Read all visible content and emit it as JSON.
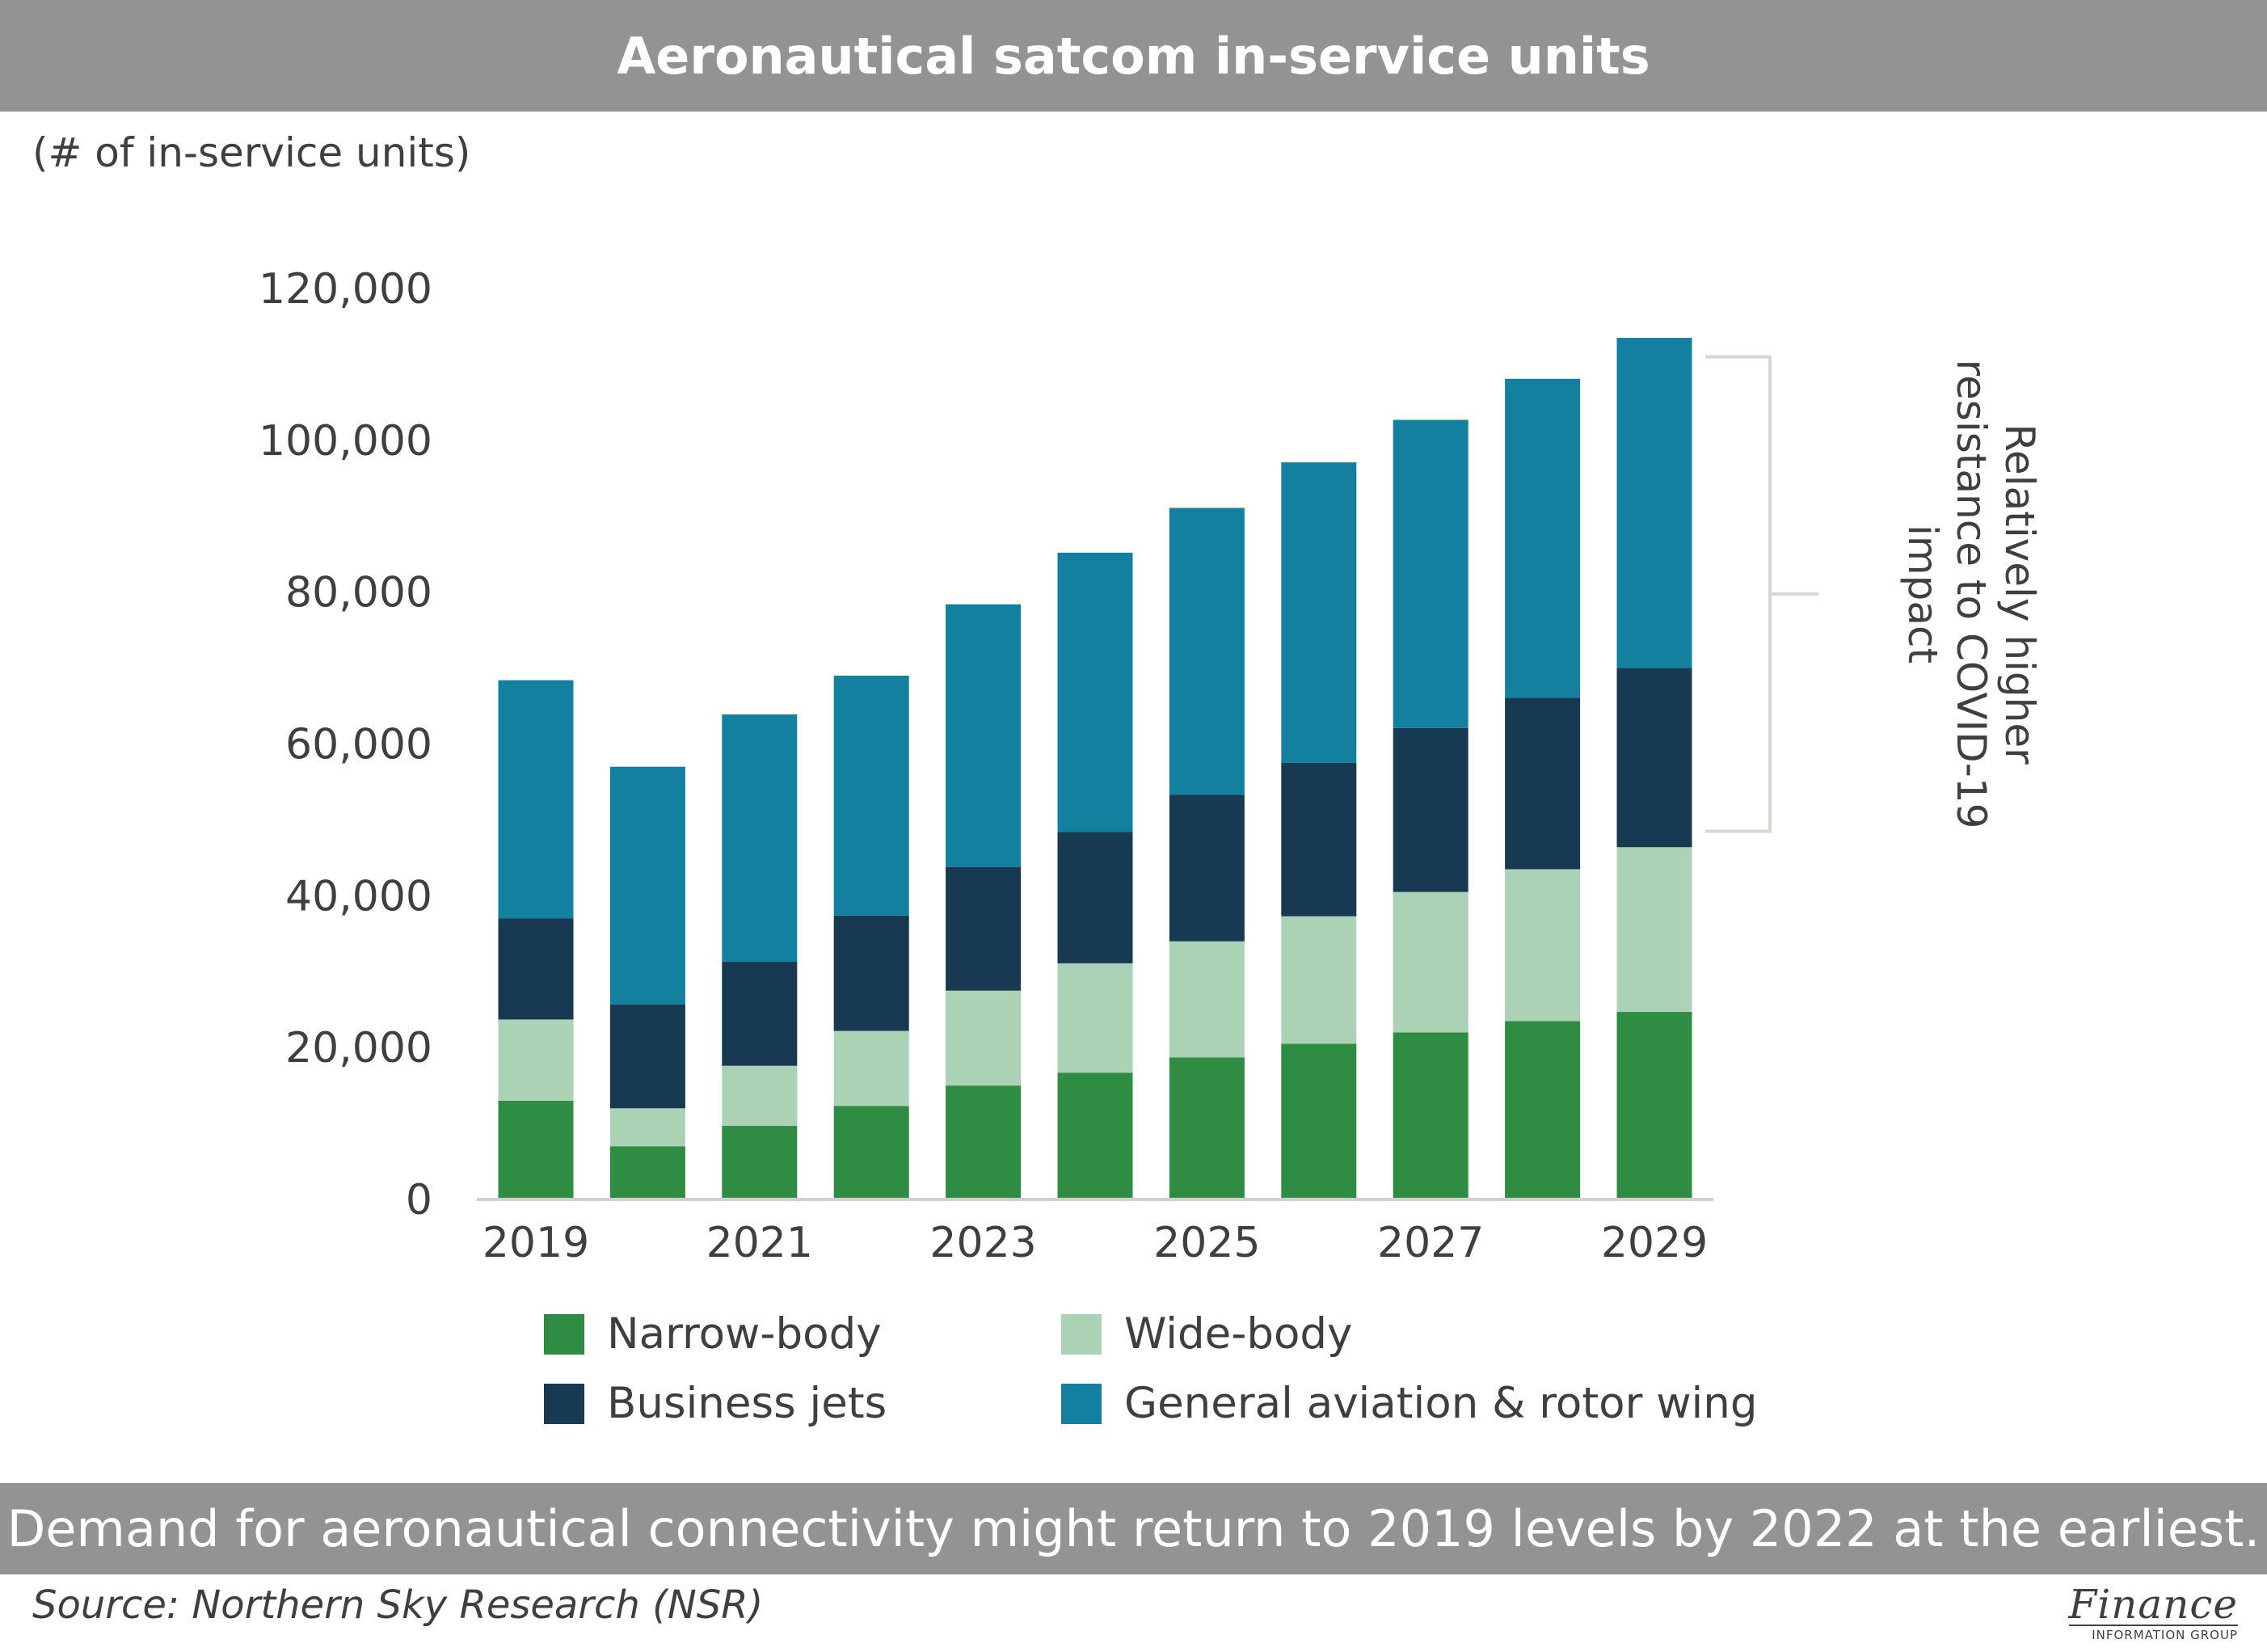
{
  "title": "Aeronautical satcom in-service units",
  "unit_label": "(# of in-service units)",
  "caption": "Demand for aeronautical connectivity might return to 2019 levels by 2022 at the earliest.",
  "source": "Source: Northern Sky Research (NSR)",
  "logo": {
    "main": "Finance",
    "sub": "INFORMATION GROUP"
  },
  "colors": {
    "narrow_body": "#2f8c43",
    "wide_body": "#acd2b5",
    "business_jets": "#173a52",
    "general_aviation": "#14809f",
    "header_bar": "#939396",
    "axis_text": "#3f3f3f",
    "bracket": "#d6d6d3"
  },
  "chart_data": {
    "type": "bar",
    "stacked": true,
    "categories": [
      "2019",
      "2020",
      "2021",
      "2022",
      "2023",
      "2024",
      "2025",
      "2026",
      "2027",
      "2028",
      "2029"
    ],
    "x_tick_labels": [
      "2019",
      "",
      "2021",
      "",
      "2023",
      "",
      "2025",
      "",
      "2027",
      "",
      "2029"
    ],
    "ylim": [
      0,
      120000
    ],
    "y_ticks": [
      0,
      20000,
      40000,
      60000,
      80000,
      100000,
      120000
    ],
    "y_tick_labels": [
      "0",
      "20,000",
      "40,000",
      "60,000",
      "80,000",
      "100,000",
      "120,000"
    ],
    "ylabel": "(# of in-service units)",
    "xlabel": "",
    "grid": false,
    "legend_position": "bottom",
    "series": [
      {
        "name": "Narrow-body",
        "color": "#2f8c43",
        "values": [
          13000,
          7000,
          9700,
          12300,
          15000,
          16700,
          18700,
          20500,
          22000,
          23500,
          24700
        ]
      },
      {
        "name": "Wide-body",
        "color": "#acd2b5",
        "values": [
          10700,
          5000,
          7900,
          9900,
          12500,
          14400,
          15300,
          16800,
          18500,
          20000,
          21700
        ]
      },
      {
        "name": "Business jets",
        "color": "#173a52",
        "values": [
          13300,
          13700,
          13700,
          15200,
          16300,
          17300,
          19300,
          20200,
          21600,
          22600,
          23600
        ]
      },
      {
        "name": "General aviation & rotor wing",
        "color": "#14809f",
        "values": [
          31400,
          31300,
          32600,
          31600,
          34600,
          36800,
          37800,
          39600,
          40600,
          42000,
          43500
        ]
      }
    ],
    "annotation": {
      "text_lines": [
        "Relatively higher",
        "resistance to COVID-19",
        "impact"
      ],
      "bracket_range": [
        48500,
        111000
      ]
    }
  }
}
